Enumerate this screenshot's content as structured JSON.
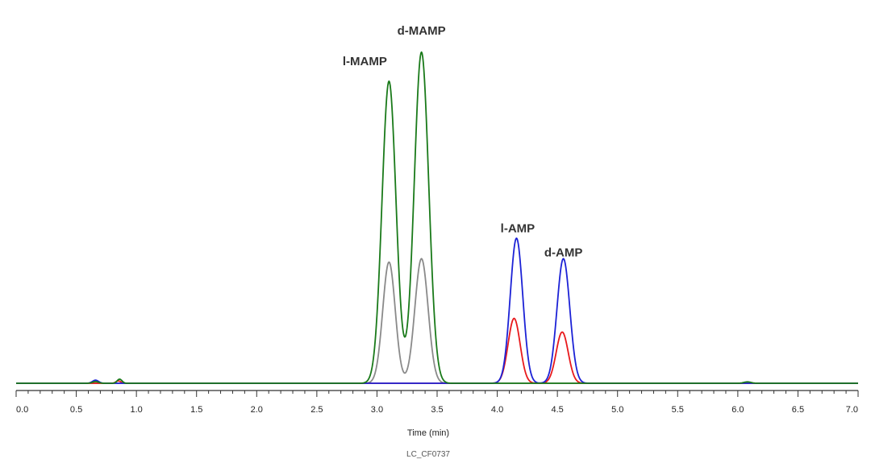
{
  "chart_data": {
    "type": "line",
    "title": "",
    "xlabel": "Time (min)",
    "ylabel": "",
    "caption": "LC_CF0737",
    "xlim": [
      0,
      7.0
    ],
    "ylim": [
      0,
      100
    ],
    "x_ticks": [
      "0.0",
      "0.5",
      "1.0",
      "1.5",
      "2.0",
      "2.5",
      "3.0",
      "3.5",
      "4.0",
      "4.5",
      "5.0",
      "5.5",
      "6.0",
      "6.5",
      "7.0"
    ],
    "peak_labels": [
      {
        "text": "l-MAMP",
        "x": 3.1,
        "y": 96
      },
      {
        "text": "d-MAMP",
        "x": 3.37,
        "y": 105
      },
      {
        "text": "l-AMP",
        "x": 4.17,
        "y": 47
      },
      {
        "text": "d-AMP",
        "x": 4.55,
        "y": 40
      }
    ],
    "series": [
      {
        "name": "gray",
        "color": "#8a8a8a",
        "peaks": [
          {
            "center": 3.1,
            "height": 35.5,
            "width": 0.052
          },
          {
            "center": 3.37,
            "height": 36.5,
            "width": 0.055
          }
        ]
      },
      {
        "name": "red",
        "color": "#e8191c",
        "peaks": [
          {
            "center": 4.14,
            "height": 19,
            "width": 0.05
          },
          {
            "center": 4.54,
            "height": 15,
            "width": 0.05
          },
          {
            "center": 0.85,
            "height": 0.7,
            "width": 0.02
          }
        ]
      },
      {
        "name": "blue",
        "color": "#1c22d6",
        "peaks": [
          {
            "center": 4.16,
            "height": 42.5,
            "width": 0.052
          },
          {
            "center": 4.55,
            "height": 36.5,
            "width": 0.053
          },
          {
            "center": 0.66,
            "height": 0.9,
            "width": 0.025
          }
        ]
      },
      {
        "name": "green",
        "color": "#1a7a1a",
        "peaks": [
          {
            "center": 3.1,
            "height": 88.5,
            "width": 0.058
          },
          {
            "center": 3.37,
            "height": 97,
            "width": 0.06
          },
          {
            "center": 0.86,
            "height": 1.2,
            "width": 0.02
          },
          {
            "center": 0.66,
            "height": 0.5,
            "width": 0.025
          },
          {
            "center": 6.08,
            "height": 0.4,
            "width": 0.03
          }
        ]
      }
    ]
  },
  "colors": {
    "axis": "#333333"
  }
}
